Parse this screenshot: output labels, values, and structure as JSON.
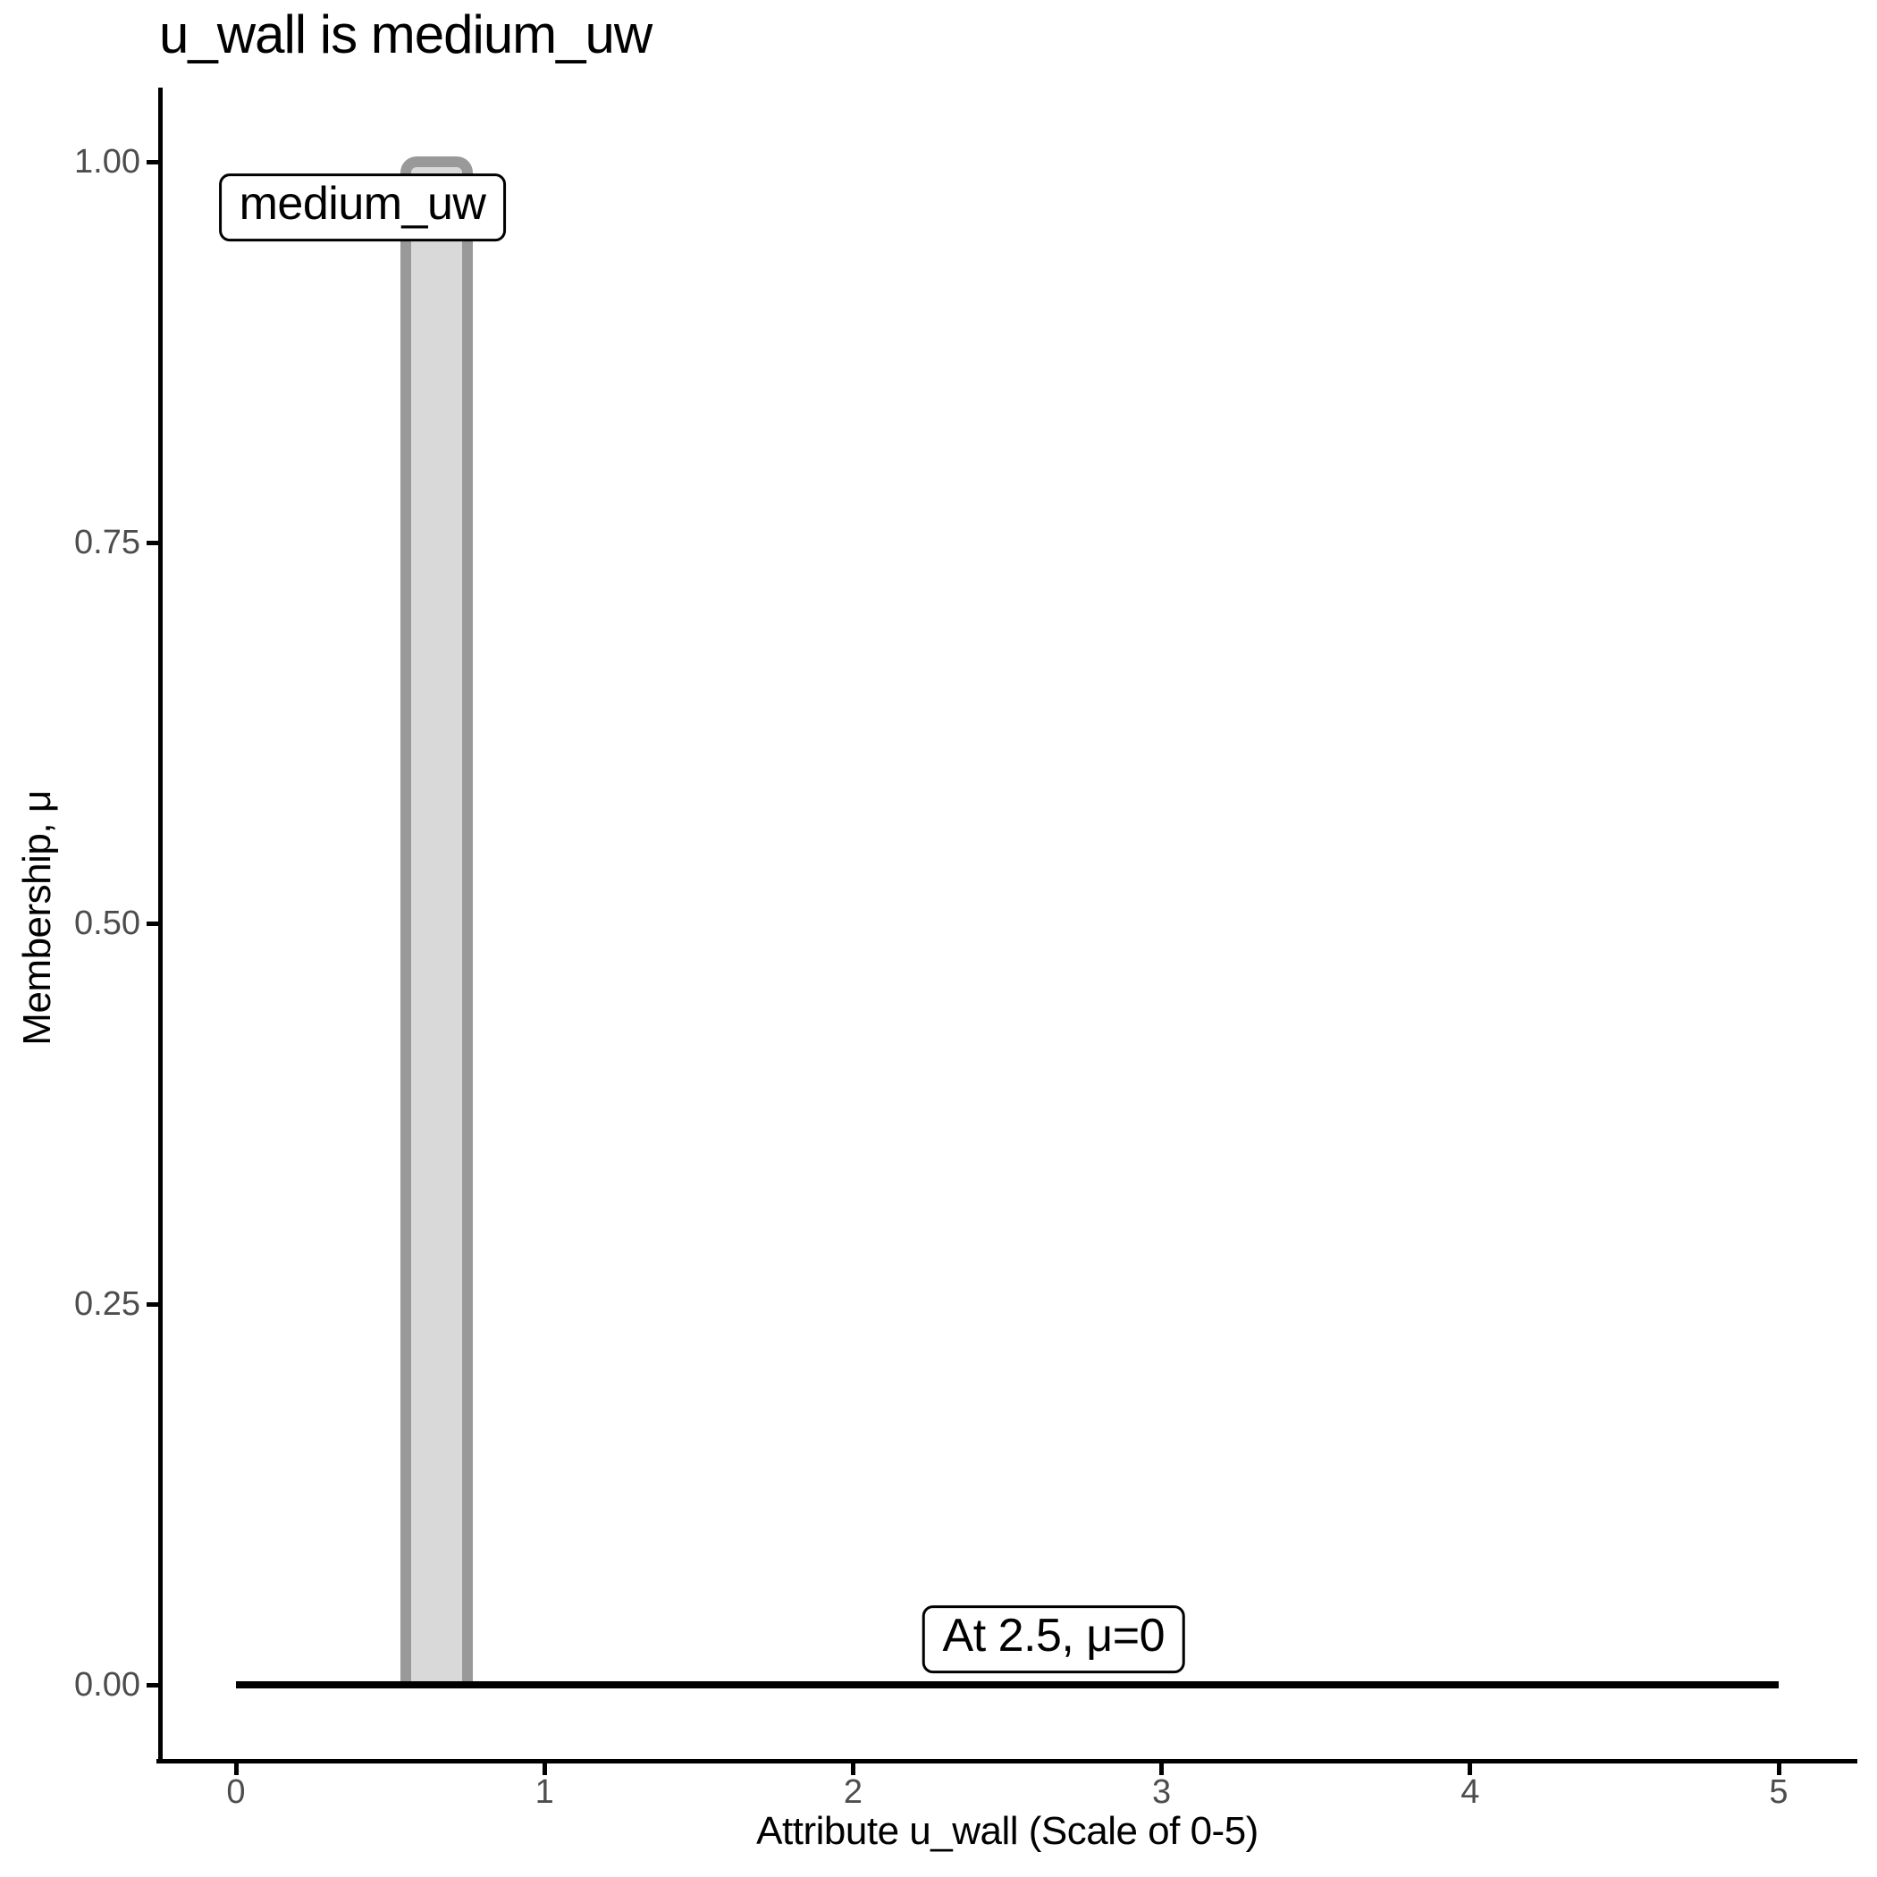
{
  "chart_data": {
    "type": "area",
    "title": "u_wall is medium_uw",
    "xlabel": "Attribute u_wall (Scale of 0-5)",
    "ylabel": "Membership, μ",
    "xlim": [
      0,
      5
    ],
    "ylim": [
      0,
      1
    ],
    "grid": false,
    "legend": "none",
    "x_ticks": [
      {
        "value": 0,
        "label": "0"
      },
      {
        "value": 1,
        "label": "1"
      },
      {
        "value": 2,
        "label": "2"
      },
      {
        "value": 3,
        "label": "3"
      },
      {
        "value": 4,
        "label": "4"
      },
      {
        "value": 5,
        "label": "5"
      }
    ],
    "y_ticks": [
      {
        "value": 0.0,
        "label": "0.00"
      },
      {
        "value": 0.25,
        "label": "0.25"
      },
      {
        "value": 0.5,
        "label": "0.50"
      },
      {
        "value": 0.75,
        "label": "0.75"
      },
      {
        "value": 1.0,
        "label": "1.00"
      }
    ],
    "series": [
      {
        "name": "medium_uw",
        "x": [
          0,
          0.55,
          0.55,
          0.75,
          0.75,
          5
        ],
        "y": [
          0,
          0,
          1,
          1,
          0,
          0
        ]
      }
    ],
    "membership_function": {
      "name": "medium_uw",
      "shape": "rectangle",
      "x_start": 0.55,
      "x_end": 0.75,
      "mu": 1,
      "fill": "#d9d9d9",
      "stroke": "#999999"
    },
    "baseline": {
      "x_start": 0,
      "x_end": 5,
      "mu": 0,
      "color": "#000000"
    },
    "annotations": [
      {
        "text": "medium_uw",
        "x": 0.41,
        "y": 0.97
      },
      {
        "text": "At 2.5, μ=0",
        "x": 2.65,
        "y": 0.03
      }
    ],
    "colors": {
      "axis": "#000000",
      "tick_labels": "#4d4d4d",
      "text": "#000000",
      "background": "#ffffff",
      "bar_fill": "#d9d9d9",
      "bar_stroke": "#999999"
    }
  }
}
